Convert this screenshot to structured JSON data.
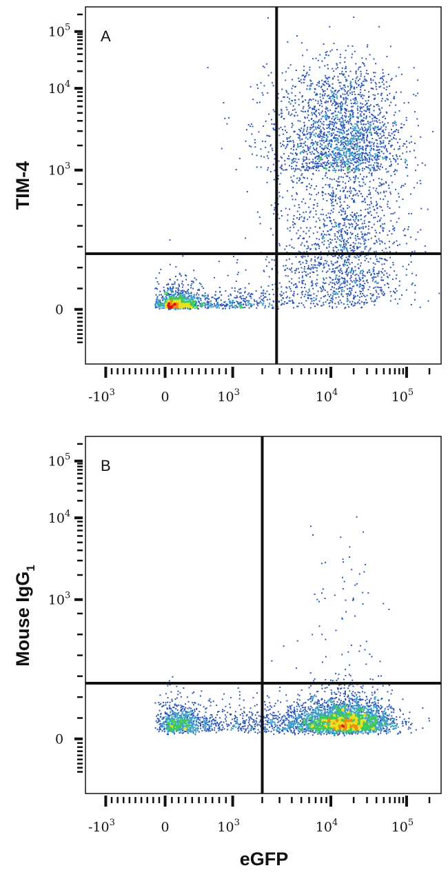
{
  "figure": {
    "x_axis_title": "eGFP",
    "colors": {
      "frame": "#111111",
      "density_scale": [
        "#2a55b8",
        "#3aa0c8",
        "#3cc85a",
        "#e8e020",
        "#f08a10",
        "#e01010"
      ]
    }
  },
  "chart_data": [
    {
      "type": "scatter",
      "panel_label": "A",
      "xlabel": "",
      "ylabel": "TIM-4",
      "ylabel_subscript": "",
      "x_scale": "biexponential",
      "y_scale": "biexponential",
      "x_ticks": [
        {
          "value": -1000,
          "base": "-10",
          "exp": "3"
        },
        {
          "value": 0,
          "base": "0",
          "exp": ""
        },
        {
          "value": 1000,
          "base": "10",
          "exp": "3"
        },
        {
          "value": 10000,
          "base": "10",
          "exp": "4"
        },
        {
          "value": 100000,
          "base": "10",
          "exp": "5"
        }
      ],
      "y_ticks": [
        {
          "value": 0,
          "base": "0",
          "exp": ""
        },
        {
          "value": 1000,
          "base": "10",
          "exp": "3"
        },
        {
          "value": 10000,
          "base": "10",
          "exp": "4"
        },
        {
          "value": 100000,
          "base": "10",
          "exp": "5"
        }
      ],
      "xlim": [
        -2500,
        250000
      ],
      "ylim": [
        -1300,
        260000
      ],
      "quadrant_gate": {
        "x": 2800,
        "y": 400
      },
      "populations": [
        {
          "x_center": 300,
          "y_center": 50,
          "x_spread": 0.55,
          "y_spread": 0.3,
          "events": 1300,
          "density": "low"
        },
        {
          "x_center": 14000,
          "y_center": 1300,
          "x_spread": 0.4,
          "y_spread": 0.6,
          "events": 3600,
          "density": "high"
        }
      ]
    },
    {
      "type": "scatter",
      "panel_label": "B",
      "xlabel": "",
      "ylabel": "Mouse IgG",
      "ylabel_subscript": "1",
      "x_scale": "biexponential",
      "y_scale": "biexponential",
      "x_ticks": [
        {
          "value": -1000,
          "base": "-10",
          "exp": "3"
        },
        {
          "value": 0,
          "base": "0",
          "exp": ""
        },
        {
          "value": 1000,
          "base": "10",
          "exp": "3"
        },
        {
          "value": 10000,
          "base": "10",
          "exp": "4"
        },
        {
          "value": 100000,
          "base": "10",
          "exp": "5"
        }
      ],
      "y_ticks": [
        {
          "value": 0,
          "base": "0",
          "exp": ""
        },
        {
          "value": 1000,
          "base": "10",
          "exp": "3"
        },
        {
          "value": 10000,
          "base": "10",
          "exp": "4"
        },
        {
          "value": 100000,
          "base": "10",
          "exp": "5"
        }
      ],
      "xlim": [
        -2500,
        250000
      ],
      "ylim": [
        -1300,
        260000
      ],
      "quadrant_gate": {
        "x": 2000,
        "y": 400
      },
      "populations": [
        {
          "x_center": 400,
          "y_center": 120,
          "x_spread": 0.55,
          "y_spread": 0.18,
          "events": 1100,
          "density": "low"
        },
        {
          "x_center": 14000,
          "y_center": 130,
          "x_spread": 0.32,
          "y_spread": 0.2,
          "events": 3400,
          "density": "high"
        },
        {
          "x_center": 16000,
          "y_center": 900,
          "x_spread": 0.2,
          "y_spread": 0.45,
          "events": 80,
          "density": "sparse"
        }
      ]
    }
  ]
}
